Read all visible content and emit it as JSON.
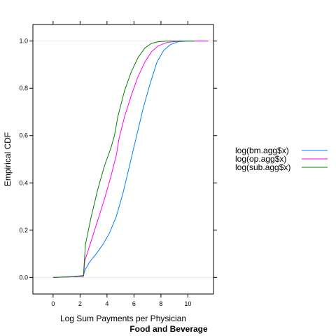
{
  "chart_data": {
    "type": "line",
    "title": "",
    "xlabel": "Log Sum Payments per Physician",
    "ylabel": "Empirical CDF",
    "sub": "Food and Beverage",
    "xlim": [
      -1.5,
      11.9
    ],
    "ylim": [
      -0.07,
      1.07
    ],
    "xticks": [
      0,
      2,
      4,
      6,
      8,
      10
    ],
    "yticks": [
      0.0,
      0.2,
      0.4,
      0.6,
      0.8,
      1.0
    ],
    "xtick_labels": [
      "0",
      "2",
      "4",
      "6",
      "8",
      "10"
    ],
    "ytick_labels": [
      "0.0",
      "0.2",
      "0.4",
      "0.6",
      "0.8",
      "1.0"
    ],
    "reference_lines": [
      0,
      1
    ],
    "grid": false,
    "legend_position": "right",
    "series": [
      {
        "name": "log(bm.agg$x)",
        "color": "#0080ff",
        "points": [
          [
            0,
            0
          ],
          [
            1.5,
            0.003
          ],
          [
            2.25,
            0.005
          ],
          [
            2.35,
            0.03
          ],
          [
            2.7,
            0.065
          ],
          [
            3.2,
            0.1
          ],
          [
            3.7,
            0.14
          ],
          [
            4.2,
            0.19
          ],
          [
            4.7,
            0.26
          ],
          [
            5.2,
            0.36
          ],
          [
            5.7,
            0.48
          ],
          [
            6.2,
            0.6
          ],
          [
            6.7,
            0.72
          ],
          [
            7.2,
            0.82
          ],
          [
            7.7,
            0.91
          ],
          [
            8.2,
            0.96
          ],
          [
            8.7,
            0.985
          ],
          [
            9.3,
            0.997
          ],
          [
            10,
            1.0
          ],
          [
            11.5,
            1.0
          ]
        ]
      },
      {
        "name": "log(op.agg$x)",
        "color": "#ff00ff",
        "points": [
          [
            0,
            0
          ],
          [
            1.5,
            0.003
          ],
          [
            2.25,
            0.005
          ],
          [
            2.35,
            0.07
          ],
          [
            2.8,
            0.15
          ],
          [
            3.3,
            0.24
          ],
          [
            3.8,
            0.33
          ],
          [
            4.3,
            0.43
          ],
          [
            4.7,
            0.52
          ],
          [
            4.9,
            0.59
          ],
          [
            5.3,
            0.68
          ],
          [
            5.8,
            0.77
          ],
          [
            6.3,
            0.85
          ],
          [
            6.8,
            0.91
          ],
          [
            7.3,
            0.955
          ],
          [
            7.8,
            0.98
          ],
          [
            8.5,
            0.995
          ],
          [
            9.5,
            1.0
          ],
          [
            11.5,
            1.0
          ]
        ]
      },
      {
        "name": "log(sub.agg$x)",
        "color": "#008000",
        "points": [
          [
            0,
            0
          ],
          [
            1.5,
            0.004
          ],
          [
            2.25,
            0.008
          ],
          [
            2.4,
            0.14
          ],
          [
            2.8,
            0.25
          ],
          [
            3.3,
            0.37
          ],
          [
            3.8,
            0.47
          ],
          [
            4.3,
            0.55
          ],
          [
            4.55,
            0.6
          ],
          [
            4.8,
            0.68
          ],
          [
            5.3,
            0.79
          ],
          [
            5.8,
            0.87
          ],
          [
            6.3,
            0.93
          ],
          [
            6.8,
            0.97
          ],
          [
            7.3,
            0.99
          ],
          [
            7.8,
            0.997
          ],
          [
            8.5,
            1.0
          ],
          [
            9.5,
            1.0
          ],
          [
            10.5,
            1.0
          ]
        ]
      }
    ]
  }
}
